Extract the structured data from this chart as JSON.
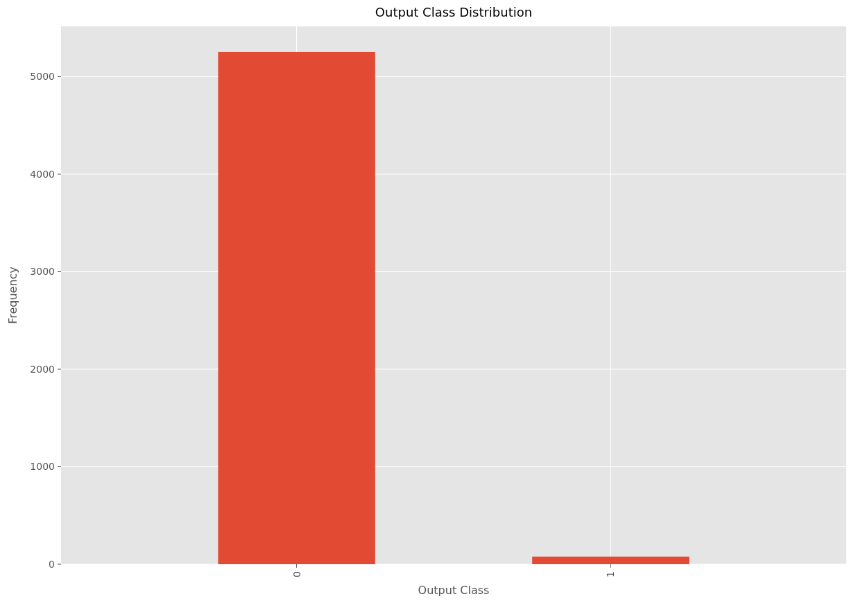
{
  "chart_data": {
    "type": "bar",
    "title": "Output Class Distribution",
    "xlabel": "Output Class",
    "ylabel": "Frequency",
    "categories": [
      "0",
      "1"
    ],
    "values": [
      5253,
      78
    ],
    "color": "#e24a33",
    "ylim": [
      0,
      5516
    ],
    "yticks": [
      0,
      1000,
      2000,
      3000,
      4000,
      5000
    ],
    "grid": true
  }
}
